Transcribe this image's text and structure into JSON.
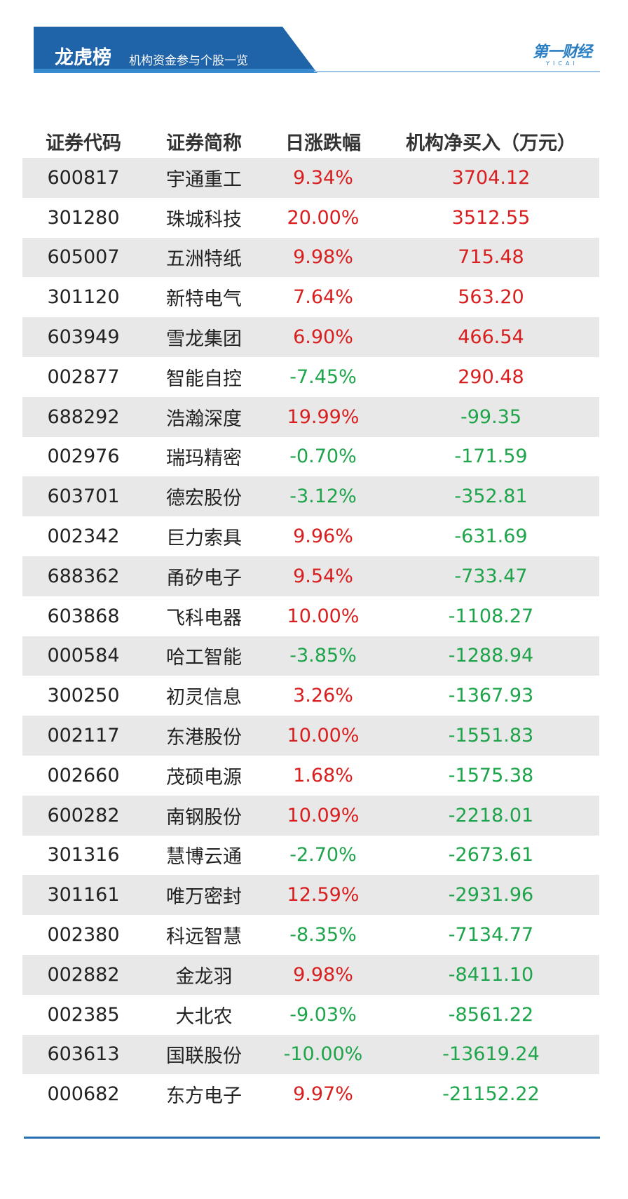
{
  "header": {
    "title": "龙虎榜",
    "subtitle": "机构资金参与个股一览",
    "logo": "第一财经",
    "logo_sub": "YICAI"
  },
  "table": {
    "columns": [
      "证券代码",
      "证券简称",
      "日涨跌幅",
      "机构净买入（万元）"
    ],
    "rows": [
      [
        "600817",
        "宇通重工",
        "9.34%",
        "3704.12"
      ],
      [
        "301280",
        "珠城科技",
        "20.00%",
        "3512.55"
      ],
      [
        "605007",
        "五洲特纸",
        "9.98%",
        "715.48"
      ],
      [
        "301120",
        "新特电气",
        "7.64%",
        "563.20"
      ],
      [
        "603949",
        "雪龙集团",
        "6.90%",
        "466.54"
      ],
      [
        "002877",
        "智能自控",
        "-7.45%",
        "290.48"
      ],
      [
        "688292",
        "浩瀚深度",
        "19.99%",
        "-99.35"
      ],
      [
        "002976",
        "瑞玛精密",
        "-0.70%",
        "-171.59"
      ],
      [
        "603701",
        "德宏股份",
        "-3.12%",
        "-352.81"
      ],
      [
        "002342",
        "巨力索具",
        "9.96%",
        "-631.69"
      ],
      [
        "688362",
        "甬矽电子",
        "9.54%",
        "-733.47"
      ],
      [
        "603868",
        "飞科电器",
        "10.00%",
        "-1108.27"
      ],
      [
        "000584",
        "哈工智能",
        "-3.85%",
        "-1288.94"
      ],
      [
        "300250",
        "初灵信息",
        "3.26%",
        "-1367.93"
      ],
      [
        "002117",
        "东港股份",
        "10.00%",
        "-1551.83"
      ],
      [
        "002660",
        "茂硕电源",
        "1.68%",
        "-1575.38"
      ],
      [
        "600282",
        "南钢股份",
        "10.09%",
        "-2218.01"
      ],
      [
        "301316",
        "慧博云通",
        "-2.70%",
        "-2673.61"
      ],
      [
        "301161",
        "唯万密封",
        "12.59%",
        "-2931.96"
      ],
      [
        "002380",
        "科远智慧",
        "-8.35%",
        "-7134.77"
      ],
      [
        "002882",
        "金龙羽",
        "9.98%",
        "-8411.10"
      ],
      [
        "002385",
        "大北农",
        "-9.03%",
        "-8561.22"
      ],
      [
        "603613",
        "国联股份",
        "-10.00%",
        "-13619.24"
      ],
      [
        "000682",
        "东方电子",
        "9.97%",
        "-21152.22"
      ]
    ]
  }
}
